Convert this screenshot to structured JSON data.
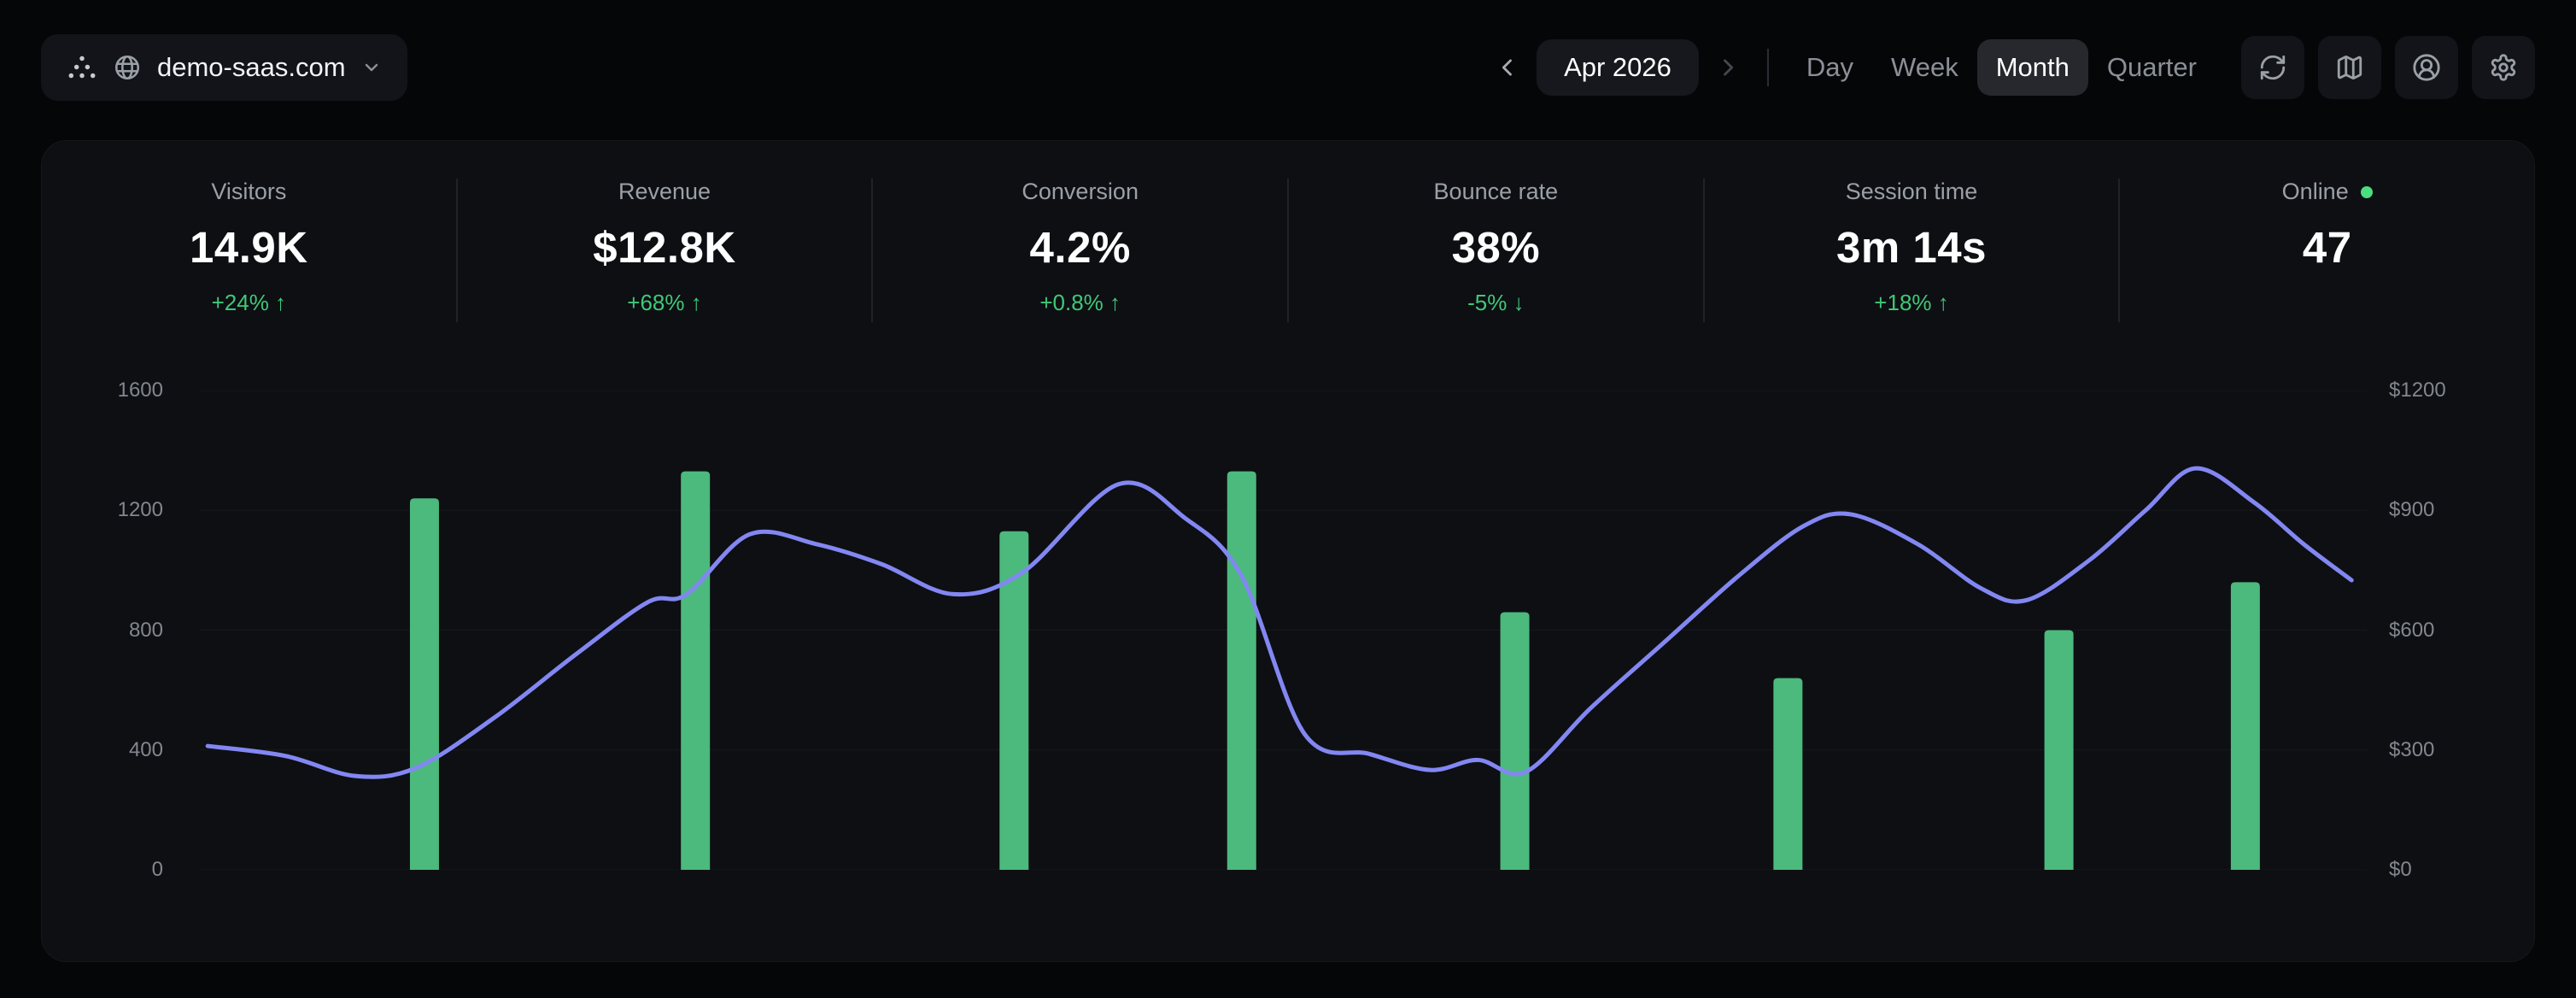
{
  "topbar": {
    "site_name": "demo-saas.com",
    "period": {
      "label": "Apr 2026"
    },
    "ranges": [
      {
        "label": "Day",
        "active": false
      },
      {
        "label": "Week",
        "active": false
      },
      {
        "label": "Month",
        "active": true
      },
      {
        "label": "Quarter",
        "active": false
      }
    ]
  },
  "stats": [
    {
      "label": "Visitors",
      "value": "14.9K",
      "delta": "+24% ↑"
    },
    {
      "label": "Revenue",
      "value": "$12.8K",
      "delta": "+68% ↑"
    },
    {
      "label": "Conversion",
      "value": "4.2%",
      "delta": "+0.8% ↑"
    },
    {
      "label": "Bounce rate",
      "value": "38%",
      "delta": "-5% ↓"
    },
    {
      "label": "Session time",
      "value": "3m 14s",
      "delta": "+18% ↑"
    },
    {
      "label": "Online",
      "value": "47",
      "delta": "",
      "live": true
    }
  ],
  "colors": {
    "bar_green": "#4cb97d",
    "line_purple": "#8387f2",
    "delta_green": "#40c878",
    "online_dot": "#4ade80",
    "grid": "#16181d"
  },
  "chart_data": {
    "type": "combo-bar-line",
    "title": "",
    "legend": "none",
    "grid": "horizontal-faint",
    "left_axis": {
      "title": "visitors",
      "max": 1600,
      "ticks": [
        0,
        400,
        800,
        1200,
        1600
      ],
      "labels": [
        "0",
        "400",
        "800",
        "1200",
        "1600"
      ]
    },
    "right_axis": {
      "title": "revenue",
      "max": 1200,
      "ticks": [
        0,
        300,
        600,
        900,
        1200
      ],
      "labels": [
        "$0",
        "$300",
        "$600",
        "$900",
        "$1200"
      ]
    },
    "bars": {
      "axis": "left",
      "x": [
        0.104,
        0.229,
        0.376,
        0.481,
        0.607,
        0.733,
        0.858,
        0.944
      ],
      "values": [
        1240,
        1330,
        1130,
        1330,
        860,
        640,
        800,
        960
      ]
    },
    "line": {
      "axis": "right",
      "points": [
        [
          0.004,
          310
        ],
        [
          0.04,
          285
        ],
        [
          0.072,
          235
        ],
        [
          0.1,
          255
        ],
        [
          0.136,
          380
        ],
        [
          0.174,
          540
        ],
        [
          0.207,
          670
        ],
        [
          0.225,
          690
        ],
        [
          0.254,
          840
        ],
        [
          0.285,
          815
        ],
        [
          0.315,
          765
        ],
        [
          0.348,
          690
        ],
        [
          0.38,
          745
        ],
        [
          0.424,
          965
        ],
        [
          0.455,
          880
        ],
        [
          0.481,
          735
        ],
        [
          0.51,
          340
        ],
        [
          0.54,
          290
        ],
        [
          0.568,
          250
        ],
        [
          0.59,
          275
        ],
        [
          0.612,
          245
        ],
        [
          0.642,
          405
        ],
        [
          0.676,
          570
        ],
        [
          0.71,
          735
        ],
        [
          0.74,
          860
        ],
        [
          0.762,
          890
        ],
        [
          0.793,
          815
        ],
        [
          0.822,
          705
        ],
        [
          0.843,
          675
        ],
        [
          0.872,
          775
        ],
        [
          0.898,
          900
        ],
        [
          0.921,
          1005
        ],
        [
          0.948,
          920
        ],
        [
          0.971,
          815
        ],
        [
          0.993,
          725
        ]
      ]
    }
  }
}
